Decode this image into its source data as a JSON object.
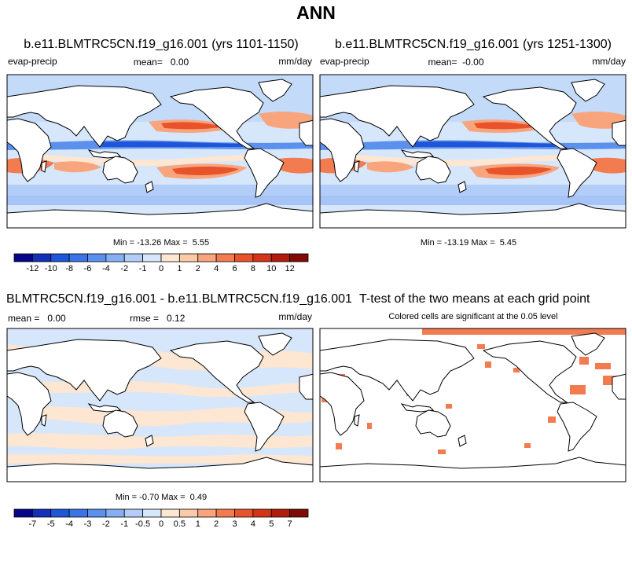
{
  "title": "ANN",
  "panels": [
    {
      "title": "b.e11.BLMTRC5CN.f19_g16.001 (yrs 1101-1150)",
      "left": "evap-precip",
      "center": "mean=   0.00",
      "right": "mm/day",
      "stats": "Min = -13.26 Max =  5.55"
    },
    {
      "title": "b.e11.BLMTRC5CN.f19_g16.001 (yrs 1251-1300)",
      "left": "evap-precip",
      "center": "mean=  -0.00",
      "right": "mm/day",
      "stats": "Min = -13.19 Max =  5.45"
    },
    {
      "title": "BLMTRC5CN.f19_g16.001 - b.e11.BLMTRC5CN.f19_g16.001",
      "left": "mean =   0.00",
      "center": "rmse =   0.12",
      "right": "mm/day",
      "stats": "Min = -0.70 Max =  0.49"
    },
    {
      "title": "T-test of the two means at each grid point",
      "subtitle": "Colored cells are significant at the 0.05 level"
    }
  ],
  "colorbars": [
    {
      "levels": [
        -12,
        -10,
        -8,
        -6,
        -4,
        -2,
        -1,
        0,
        1,
        2,
        4,
        6,
        8,
        10,
        12
      ],
      "colors": [
        "#06068a",
        "#1331b8",
        "#1f55d8",
        "#3b74e6",
        "#5b90ec",
        "#86aef2",
        "#b2cdf7",
        "#d6e6fb",
        "#fde6d2",
        "#fbcaa8",
        "#f8a47c",
        "#f27c4f",
        "#e9532a",
        "#d33516",
        "#b01d0c",
        "#800a04"
      ]
    },
    {
      "levels": [
        -7,
        -5,
        -4,
        -3,
        -2,
        -1,
        -0.5,
        0,
        0.5,
        1,
        2,
        3,
        4,
        5,
        7
      ],
      "colors": [
        "#06068a",
        "#1331b8",
        "#1f55d8",
        "#3b74e6",
        "#5b90ec",
        "#86aef2",
        "#b2cdf7",
        "#d6e6fb",
        "#fde6d2",
        "#fbcaa8",
        "#f8a47c",
        "#f27c4f",
        "#e9532a",
        "#d33516",
        "#b01d0c",
        "#800a04"
      ]
    }
  ]
}
